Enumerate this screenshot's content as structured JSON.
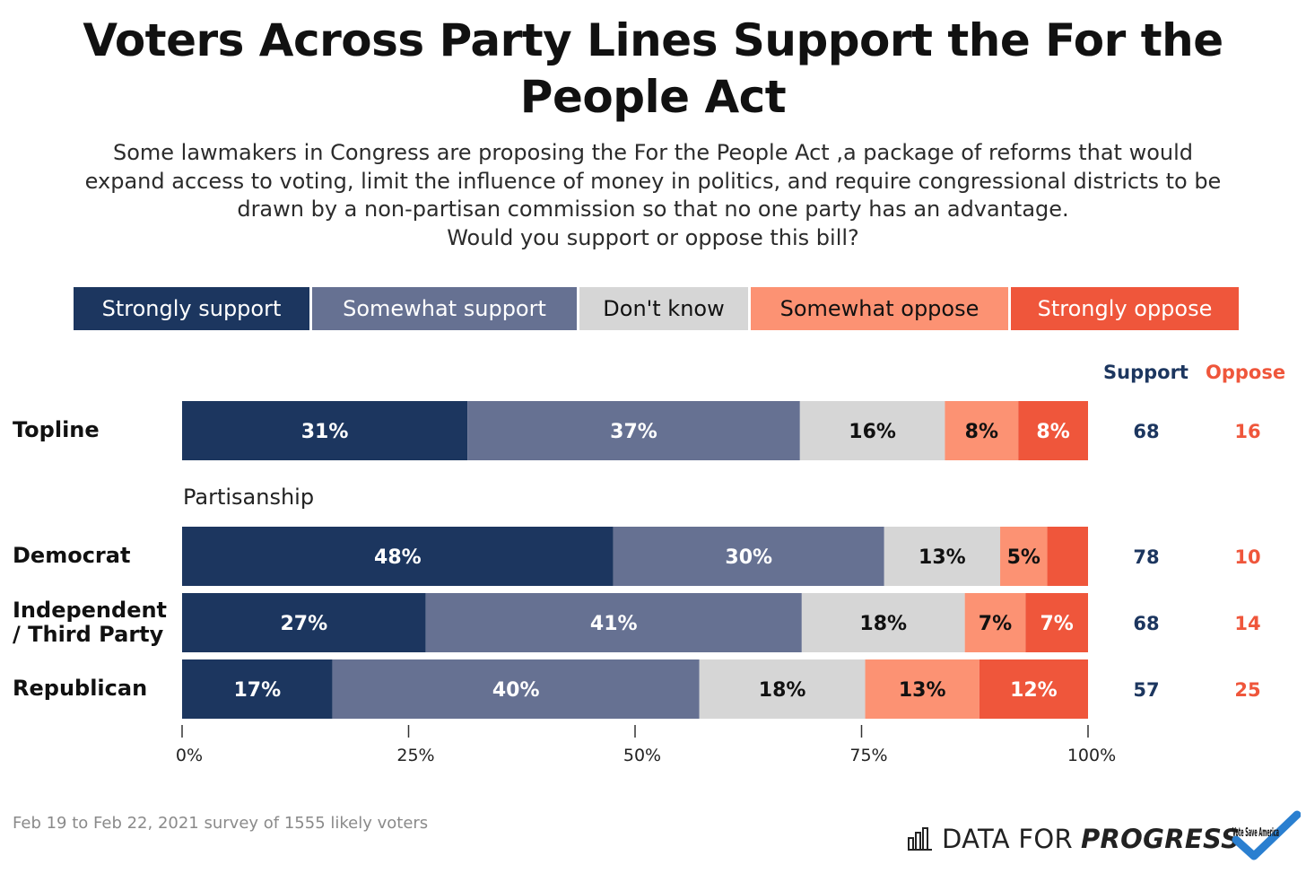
{
  "header": {
    "title_line1": "Voters Across Party Lines Support the For the",
    "title_line2": "People Act",
    "subtitle_lines": [
      "Some lawmakers in Congress are proposing the For the People Act ,a package of reforms that would",
      "expand access to voting, limit the influence of money in politics, and require congressional districts to be",
      "drawn by a non-partisan commission so that no one party has an advantage.",
      "Would you support or oppose this bill?"
    ]
  },
  "legend": [
    {
      "label": "Strongly support",
      "color": "#1c365f",
      "text_color": "#ffffff"
    },
    {
      "label": "Somewhat support",
      "color": "#667192",
      "text_color": "#ffffff"
    },
    {
      "label": "Don't know",
      "color": "#d6d6d6",
      "text_color": "#111111"
    },
    {
      "label": "Somewhat oppose",
      "color": "#fc9273",
      "text_color": "#111111"
    },
    {
      "label": "Strongly oppose",
      "color": "#ef563b",
      "text_color": "#ffffff"
    }
  ],
  "columns": {
    "support": "Support",
    "oppose": "Oppose",
    "support_color": "#1c365f",
    "oppose_color": "#ef563b"
  },
  "section_label": "Partisanship",
  "rows": [
    {
      "label_lines": [
        "Topline"
      ],
      "support": "68",
      "oppose": "16"
    },
    {
      "label_lines": [
        "Democrat"
      ],
      "support": "78",
      "oppose": "10"
    },
    {
      "label_lines": [
        "Independent",
        "/ Third Party"
      ],
      "support": "68",
      "oppose": "14"
    },
    {
      "label_lines": [
        "Republican"
      ],
      "support": "57",
      "oppose": "25"
    }
  ],
  "chart_data": {
    "type": "bar",
    "orientation": "horizontal",
    "stacked": true,
    "categories": [
      "Topline",
      "Democrat",
      "Independent / Third Party",
      "Republican"
    ],
    "series": [
      {
        "name": "Strongly support",
        "values": [
          31.5,
          47.6,
          26.9,
          16.6
        ],
        "labels": [
          "31%",
          "48%",
          "27%",
          "17%"
        ]
      },
      {
        "name": "Somewhat support",
        "values": [
          36.7,
          29.9,
          41.5,
          40.5
        ],
        "labels": [
          "37%",
          "30%",
          "41%",
          "40%"
        ]
      },
      {
        "name": "Don't know",
        "values": [
          16.0,
          12.8,
          18.0,
          18.3
        ],
        "labels": [
          "16%",
          "13%",
          "18%",
          "18%"
        ]
      },
      {
        "name": "Somewhat oppose",
        "values": [
          8.1,
          5.2,
          6.7,
          12.6
        ],
        "labels": [
          "8%",
          "5%",
          "7%",
          "13%"
        ]
      },
      {
        "name": "Strongly oppose",
        "values": [
          7.7,
          4.5,
          6.9,
          12.0
        ],
        "labels": [
          "8%",
          "",
          "7%",
          "12%"
        ]
      }
    ],
    "xlim": [
      0,
      100
    ],
    "xticks": [
      "0%",
      "25%",
      "50%",
      "75%",
      "100%"
    ]
  },
  "footer": {
    "note": "Feb 19 to Feb 22, 2021 survey of 1555 likely voters",
    "brand_part1": "DATA FOR",
    "brand_part2": "PROGRESS",
    "logo2_text": "Vote Save America"
  }
}
